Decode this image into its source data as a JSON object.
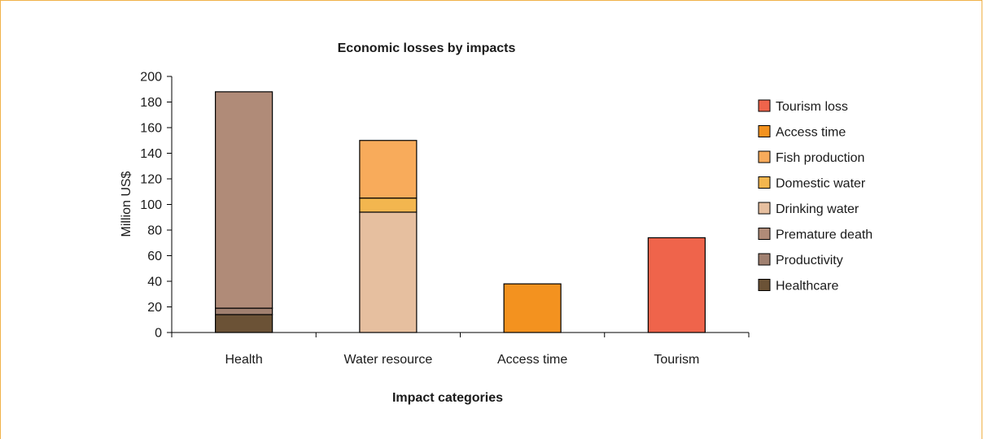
{
  "chart_data": {
    "type": "bar",
    "stacked": true,
    "title": "Economic losses by impacts",
    "xlabel": "Impact categories",
    "ylabel": "Million US$",
    "ylim": [
      0,
      200
    ],
    "yticks": [
      0,
      20,
      40,
      60,
      80,
      100,
      120,
      140,
      160,
      180,
      200
    ],
    "categories": [
      "Health",
      "Water resource",
      "Access time",
      "Tourism"
    ],
    "series": [
      {
        "name": "Healthcare",
        "color": "#6b5236",
        "values": [
          14,
          0,
          0,
          0
        ]
      },
      {
        "name": "Productivity",
        "color": "#a08070",
        "values": [
          5,
          0,
          0,
          0
        ]
      },
      {
        "name": "Premature death",
        "color": "#b08b78",
        "values": [
          169,
          0,
          0,
          0
        ]
      },
      {
        "name": "Drinking water",
        "color": "#e6bf9f",
        "values": [
          0,
          94,
          0,
          0
        ]
      },
      {
        "name": "Domestic water",
        "color": "#f3b64f",
        "values": [
          0,
          11,
          0,
          0
        ]
      },
      {
        "name": "Fish production",
        "color": "#f8ab5b",
        "values": [
          0,
          45,
          0,
          0
        ]
      },
      {
        "name": "Access time",
        "color": "#f3921f",
        "values": [
          0,
          0,
          38,
          0
        ]
      },
      {
        "name": "Tourism loss",
        "color": "#ef644b",
        "values": [
          0,
          0,
          0,
          74
        ]
      }
    ],
    "legend_order": [
      "Tourism loss",
      "Access time",
      "Fish production",
      "Domestic water",
      "Drinking water",
      "Premature death",
      "Productivity",
      "Healthcare"
    ],
    "legend_position": "right",
    "grid": false
  }
}
